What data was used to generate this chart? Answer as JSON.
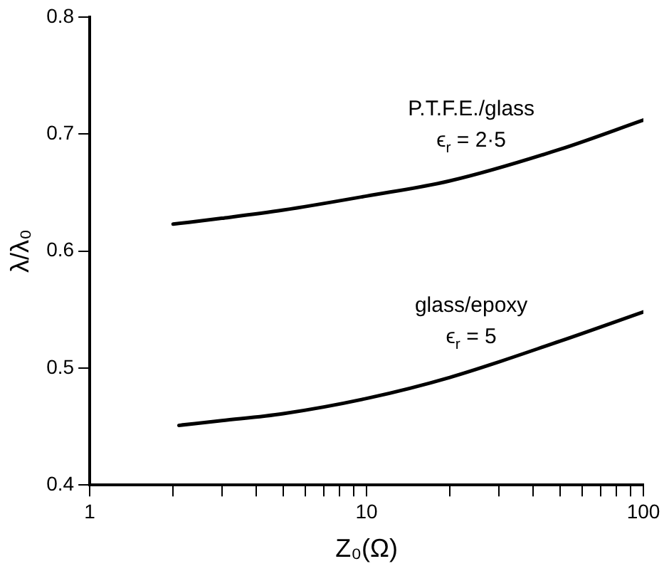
{
  "chart_data": {
    "type": "line",
    "xlabel": "Z₀(Ω)",
    "ylabel": "λ/λ₀",
    "log": "x",
    "xlim": [
      1,
      100
    ],
    "ylim": [
      0.4,
      0.8
    ],
    "xticks": [
      1,
      {
        "value": 2,
        "label": null
      },
      {
        "value": 3,
        "label": null
      },
      {
        "value": 4,
        "label": null
      },
      {
        "value": 5,
        "label": null
      },
      {
        "value": 6,
        "label": null
      },
      {
        "value": 7,
        "label": null
      },
      {
        "value": 8,
        "label": null
      },
      {
        "value": 9,
        "label": null
      },
      10,
      {
        "value": 20,
        "label": null
      },
      {
        "value": 30,
        "label": null
      },
      {
        "value": 40,
        "label": null
      },
      {
        "value": 50,
        "label": null
      },
      {
        "value": 60,
        "label": null
      },
      {
        "value": 70,
        "label": null
      },
      {
        "value": 80,
        "label": null
      },
      {
        "value": 90,
        "label": null
      },
      100
    ],
    "yticks": [
      0.4,
      0.5,
      0.6,
      0.7,
      0.8
    ],
    "grid": false,
    "legend": false,
    "marker": "none",
    "line_style": "solid",
    "series": [
      {
        "name": "P.T.F.E./glass",
        "color": "#000000",
        "x": [
          2,
          3,
          5,
          10,
          20,
          50,
          100
        ],
        "values": [
          0.623,
          0.628,
          0.635,
          0.647,
          0.66,
          0.687,
          0.712
        ]
      },
      {
        "name": "glass/epoxy",
        "color": "#000000",
        "x": [
          2.1,
          3,
          5,
          10,
          20,
          50,
          100
        ],
        "values": [
          0.451,
          0.455,
          0.461,
          0.474,
          0.492,
          0.523,
          0.548
        ]
      }
    ],
    "annotations": [
      "ϵ$_{r}$ = 2·5",
      "ϵ$_{r}$ = 5"
    ]
  }
}
